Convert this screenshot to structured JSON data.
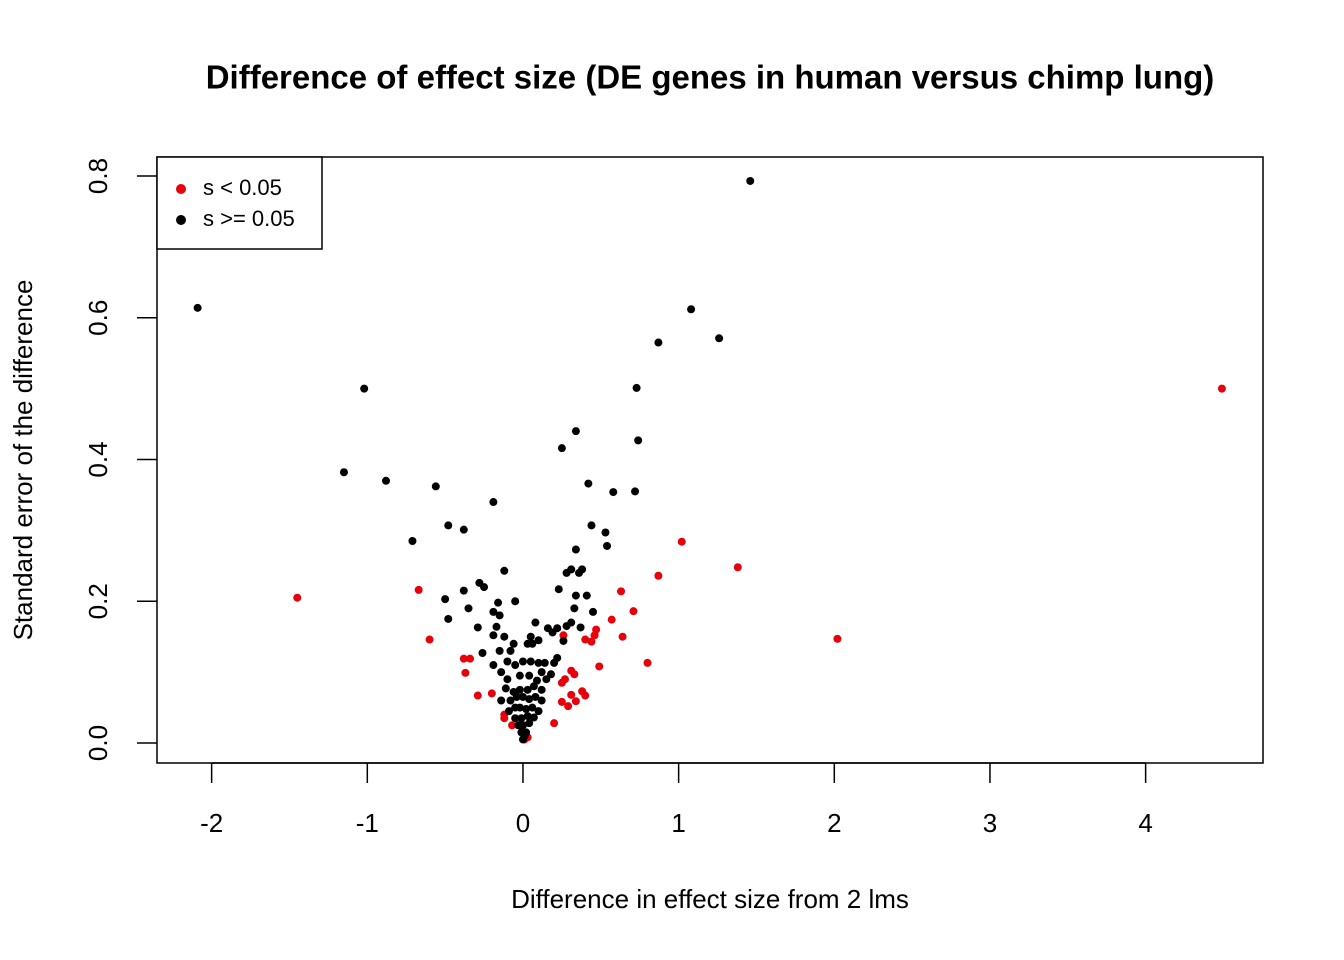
{
  "chart_data": {
    "type": "scatter",
    "title": "Difference of effect size (DE genes in human versus chimp lung)",
    "x_label": "Difference in effect size from 2 lms",
    "y_label": "Standard error of the difference",
    "xlim": [
      -2.351,
      4.754
    ],
    "ylim": [
      -0.0282,
      0.8268
    ],
    "xticks": [
      -2,
      -1,
      0,
      1,
      2,
      3,
      4
    ],
    "yticks": [
      {
        "value": 0,
        "label": "0.0"
      },
      0.2,
      0.4,
      0.6,
      0.8
    ],
    "legend": "top-left",
    "series": [
      {
        "name": "s < 0.05",
        "color": "#e8000b",
        "x": [
          4.49,
          -1.45,
          2.02,
          1.38,
          1.02,
          0.87,
          0.8,
          -0.67,
          -0.6,
          -0.38,
          -0.34,
          -0.37,
          -0.29,
          -0.2,
          -0.12,
          -0.12,
          -0.07,
          0.03,
          0.01,
          0.2,
          0.25,
          0.25,
          0.27,
          0.29,
          0.31,
          0.31,
          0.33,
          0.34,
          0.38,
          0.4,
          0.4,
          0.44,
          0.46,
          0.47,
          0.49,
          0.57,
          0.63,
          0.64,
          0.71,
          0.26
        ],
        "values": [
          0.5,
          0.205,
          0.147,
          0.248,
          0.284,
          0.236,
          0.113,
          0.216,
          0.146,
          0.119,
          0.119,
          0.099,
          0.067,
          0.07,
          0.04,
          0.035,
          0.025,
          0.008,
          0.005,
          0.028,
          0.058,
          0.085,
          0.09,
          0.052,
          0.068,
          0.102,
          0.097,
          0.059,
          0.073,
          0.067,
          0.146,
          0.143,
          0.152,
          0.16,
          0.108,
          0.174,
          0.214,
          0.15,
          0.186,
          0.152
        ]
      },
      {
        "name": "s >= 0.05",
        "color": "#000000",
        "x": [
          1.46,
          -2.09,
          1.08,
          0.87,
          1.26,
          -1.02,
          0.73,
          0.34,
          0.74,
          0.25,
          -1.15,
          -0.88,
          0.42,
          0.58,
          0.72,
          -0.56,
          -0.19,
          0.44,
          -0.48,
          -0.38,
          0.53,
          -0.71,
          0.54,
          0.34,
          0.31,
          0.36,
          0.28,
          0.38,
          -0.12,
          -0.28,
          -0.25,
          -0.38,
          0.23,
          -0.16,
          -0.05,
          -0.5,
          0.34,
          0.41,
          0.33,
          -0.35,
          -0.48,
          -0.19,
          0.45,
          0.31,
          -0.15,
          0.28,
          -0.29,
          -0.17,
          0.08,
          0.16,
          0.22,
          0.19,
          0.37,
          -0.19,
          -0.12,
          -0.06,
          0.05,
          0.1,
          0.26,
          -0.26,
          -0.15,
          -0.08,
          0.03,
          0.06,
          -0.1,
          -0.19,
          -0.14,
          -0.05,
          0.0,
          0.05,
          0.1,
          0.14,
          0.2,
          0.22,
          0.12,
          0.18,
          -0.1,
          -0.02,
          0.04,
          0.09,
          0.15,
          -0.11,
          -0.06,
          -0.02,
          0.03,
          0.07,
          0.12,
          -0.14,
          -0.08,
          -0.04,
          0.0,
          0.04,
          0.08,
          0.12,
          -0.09,
          -0.05,
          -0.02,
          0.02,
          0.06,
          0.1,
          -0.05,
          -0.01,
          0.03,
          0.07,
          -0.03,
          0.0,
          0.04,
          -0.01,
          0.02,
          0.0,
          0.01
        ],
        "values": [
          0.793,
          0.614,
          0.612,
          0.565,
          0.571,
          0.5,
          0.501,
          0.44,
          0.427,
          0.416,
          0.382,
          0.37,
          0.366,
          0.354,
          0.355,
          0.362,
          0.34,
          0.307,
          0.307,
          0.301,
          0.297,
          0.285,
          0.278,
          0.273,
          0.245,
          0.24,
          0.24,
          0.245,
          0.243,
          0.226,
          0.22,
          0.215,
          0.217,
          0.198,
          0.2,
          0.203,
          0.208,
          0.208,
          0.19,
          0.19,
          0.175,
          0.185,
          0.185,
          0.17,
          0.18,
          0.165,
          0.163,
          0.164,
          0.17,
          0.162,
          0.162,
          0.156,
          0.163,
          0.152,
          0.15,
          0.14,
          0.15,
          0.145,
          0.144,
          0.127,
          0.13,
          0.13,
          0.14,
          0.14,
          0.115,
          0.11,
          0.1,
          0.11,
          0.115,
          0.115,
          0.113,
          0.113,
          0.113,
          0.12,
          0.1,
          0.097,
          0.09,
          0.095,
          0.095,
          0.088,
          0.09,
          0.077,
          0.072,
          0.075,
          0.075,
          0.08,
          0.075,
          0.06,
          0.06,
          0.065,
          0.065,
          0.062,
          0.065,
          0.06,
          0.045,
          0.05,
          0.05,
          0.048,
          0.05,
          0.045,
          0.035,
          0.035,
          0.038,
          0.036,
          0.025,
          0.025,
          0.028,
          0.015,
          0.015,
          0.005,
          0.01
        ]
      }
    ]
  }
}
